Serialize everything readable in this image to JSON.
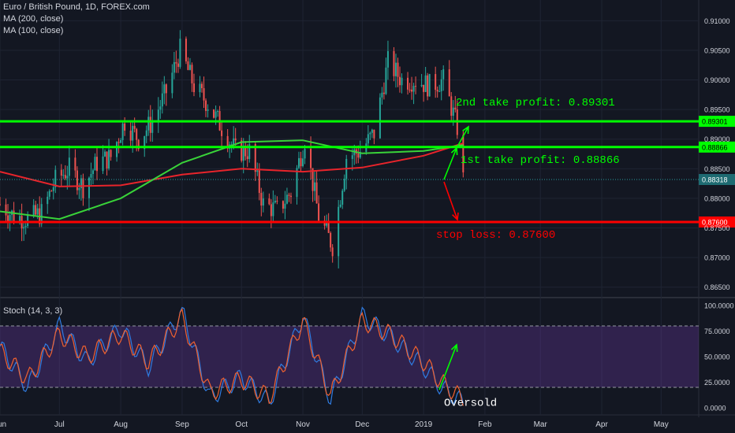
{
  "header": {
    "symbol": "Euro / British Pound, 1D, FOREX.com",
    "ma200": "MA (200, close)",
    "ma100": "MA (100, close)"
  },
  "stoch_label": "Stoch (14, 3, 3)",
  "colors": {
    "bg": "#131722",
    "grid": "#1f2433",
    "axis_text": "#d1d4dc",
    "up": "#26a69a",
    "down": "#ef5350",
    "ma100": "#39d339",
    "ma200": "#e8242b",
    "take_profit": "#00ff00",
    "stop_loss": "#ff0000",
    "stoch_k": "#2f7be0",
    "stoch_d": "#f0612f",
    "stoch_band": "#7e3fbf",
    "price_line": "#2a9d9d"
  },
  "chart_data": [
    {
      "type": "candlestick",
      "symbol": "EUR/GBP",
      "timeframe": "1D",
      "y_ticks": [
        0.865,
        0.87,
        0.875,
        0.88,
        0.885,
        0.89,
        0.895,
        0.9,
        0.905,
        0.91
      ],
      "y_tick_labels": [
        "0.86500",
        "0.87000",
        "0.87500",
        "0.88000",
        "0.88500",
        "0.89000",
        "0.89500",
        "0.90000",
        "0.90500",
        "0.91000"
      ],
      "ylim": [
        0.8635,
        0.9135
      ],
      "x_tick_labels": [
        "Jun",
        "Jul",
        "Aug",
        "Sep",
        "Oct",
        "Nov",
        "Dec",
        "2019",
        "Feb",
        "Mar",
        "Apr",
        "May"
      ],
      "x_range": [
        "2018-06-01",
        "2019-05-20"
      ],
      "current_price": {
        "value": 0.88318,
        "label": "0.88318"
      },
      "horizontal_levels": [
        {
          "name": "2nd take profit",
          "value": 0.89301,
          "label": "0.89301",
          "role": "take_profit"
        },
        {
          "name": "1st take profit",
          "value": 0.88866,
          "label": "0.88866",
          "role": "take_profit"
        },
        {
          "name": "stop loss",
          "value": 0.876,
          "label": "0.87600",
          "role": "stop_loss"
        }
      ],
      "annotations": [
        {
          "text": "2nd take profit: 0.89301",
          "color": "take_profit"
        },
        {
          "text": "1st take profit: 0.88866",
          "color": "take_profit"
        },
        {
          "text": "stop loss: 0.87600",
          "color": "stop_loss"
        }
      ],
      "close_series": [
        {
          "date": "2018-06-01",
          "close": 0.879
        },
        {
          "date": "2018-06-08",
          "close": 0.877
        },
        {
          "date": "2018-06-15",
          "close": 0.8765
        },
        {
          "date": "2018-06-22",
          "close": 0.8775
        },
        {
          "date": "2018-06-29",
          "close": 0.883
        },
        {
          "date": "2018-07-06",
          "close": 0.885
        },
        {
          "date": "2018-07-13",
          "close": 0.882
        },
        {
          "date": "2018-07-20",
          "close": 0.886
        },
        {
          "date": "2018-07-27",
          "close": 0.887
        },
        {
          "date": "2018-08-03",
          "close": 0.893
        },
        {
          "date": "2018-08-10",
          "close": 0.89
        },
        {
          "date": "2018-08-17",
          "close": 0.893
        },
        {
          "date": "2018-08-24",
          "close": 0.898
        },
        {
          "date": "2018-08-31",
          "close": 0.905
        },
        {
          "date": "2018-09-07",
          "close": 0.899
        },
        {
          "date": "2018-09-14",
          "close": 0.896
        },
        {
          "date": "2018-09-21",
          "close": 0.892
        },
        {
          "date": "2018-09-28",
          "close": 0.888
        },
        {
          "date": "2018-10-05",
          "close": 0.888
        },
        {
          "date": "2018-10-12",
          "close": 0.879
        },
        {
          "date": "2018-10-19",
          "close": 0.878
        },
        {
          "date": "2018-10-26",
          "close": 0.881
        },
        {
          "date": "2018-11-02",
          "close": 0.89
        },
        {
          "date": "2018-11-09",
          "close": 0.877
        },
        {
          "date": "2018-11-16",
          "close": 0.872
        },
        {
          "date": "2018-11-23",
          "close": 0.887
        },
        {
          "date": "2018-11-30",
          "close": 0.888
        },
        {
          "date": "2018-12-07",
          "close": 0.891
        },
        {
          "date": "2018-12-14",
          "close": 0.903
        },
        {
          "date": "2018-12-21",
          "close": 0.9
        },
        {
          "date": "2018-12-28",
          "close": 0.9
        },
        {
          "date": "2019-01-04",
          "close": 0.899
        },
        {
          "date": "2019-01-11",
          "close": 0.9
        },
        {
          "date": "2019-01-18",
          "close": 0.892
        },
        {
          "date": "2019-01-21",
          "close": 0.8832
        }
      ],
      "ma100_series": [
        {
          "date": "2018-06-01",
          "value": 0.8778
        },
        {
          "date": "2018-07-01",
          "value": 0.8765
        },
        {
          "date": "2018-08-01",
          "value": 0.88
        },
        {
          "date": "2018-09-01",
          "value": 0.886
        },
        {
          "date": "2018-10-01",
          "value": 0.8895
        },
        {
          "date": "2018-11-01",
          "value": 0.8898
        },
        {
          "date": "2018-12-01",
          "value": 0.8876
        },
        {
          "date": "2019-01-01",
          "value": 0.888
        },
        {
          "date": "2019-01-21",
          "value": 0.889
        }
      ],
      "ma200_series": [
        {
          "date": "2018-06-01",
          "value": 0.8845
        },
        {
          "date": "2018-07-01",
          "value": 0.882
        },
        {
          "date": "2018-08-01",
          "value": 0.8822
        },
        {
          "date": "2018-09-01",
          "value": 0.884
        },
        {
          "date": "2018-10-01",
          "value": 0.885
        },
        {
          "date": "2018-11-01",
          "value": 0.8845
        },
        {
          "date": "2018-12-01",
          "value": 0.8852
        },
        {
          "date": "2019-01-01",
          "value": 0.8872
        },
        {
          "date": "2019-01-21",
          "value": 0.8893
        }
      ]
    },
    {
      "type": "line",
      "name": "Stoch (14, 3, 3)",
      "ylim": [
        0,
        100
      ],
      "y_ticks": [
        0,
        25,
        50,
        75,
        100
      ],
      "y_tick_labels": [
        "0.0000",
        "25.0000",
        "50.0000",
        "75.0000",
        "100.0000"
      ],
      "overbought": 80,
      "oversold": 20,
      "annotation": "Oversold",
      "k_series": [
        {
          "date": "2018-06-01",
          "value": 60
        },
        {
          "date": "2018-06-15",
          "value": 20
        },
        {
          "date": "2018-07-01",
          "value": 80
        },
        {
          "date": "2018-07-15",
          "value": 45
        },
        {
          "date": "2018-08-01",
          "value": 78
        },
        {
          "date": "2018-08-15",
          "value": 40
        },
        {
          "date": "2018-09-01",
          "value": 95
        },
        {
          "date": "2018-09-15",
          "value": 10
        },
        {
          "date": "2018-10-01",
          "value": 30
        },
        {
          "date": "2018-10-15",
          "value": 5
        },
        {
          "date": "2018-11-01",
          "value": 90
        },
        {
          "date": "2018-11-15",
          "value": 8
        },
        {
          "date": "2018-12-01",
          "value": 90
        },
        {
          "date": "2018-12-15",
          "value": 70
        },
        {
          "date": "2019-01-01",
          "value": 40
        },
        {
          "date": "2019-01-10",
          "value": 20
        },
        {
          "date": "2019-01-21",
          "value": 5
        }
      ],
      "d_series": [
        {
          "date": "2018-06-01",
          "value": 55
        },
        {
          "date": "2018-06-15",
          "value": 28
        },
        {
          "date": "2018-07-01",
          "value": 72
        },
        {
          "date": "2018-07-15",
          "value": 50
        },
        {
          "date": "2018-08-01",
          "value": 72
        },
        {
          "date": "2018-08-15",
          "value": 45
        },
        {
          "date": "2018-09-01",
          "value": 88
        },
        {
          "date": "2018-09-15",
          "value": 15
        },
        {
          "date": "2018-10-01",
          "value": 28
        },
        {
          "date": "2018-10-15",
          "value": 10
        },
        {
          "date": "2018-11-01",
          "value": 85
        },
        {
          "date": "2018-11-15",
          "value": 12
        },
        {
          "date": "2018-12-01",
          "value": 85
        },
        {
          "date": "2018-12-15",
          "value": 72
        },
        {
          "date": "2019-01-01",
          "value": 45
        },
        {
          "date": "2019-01-10",
          "value": 25
        },
        {
          "date": "2019-01-21",
          "value": 8
        }
      ]
    }
  ]
}
